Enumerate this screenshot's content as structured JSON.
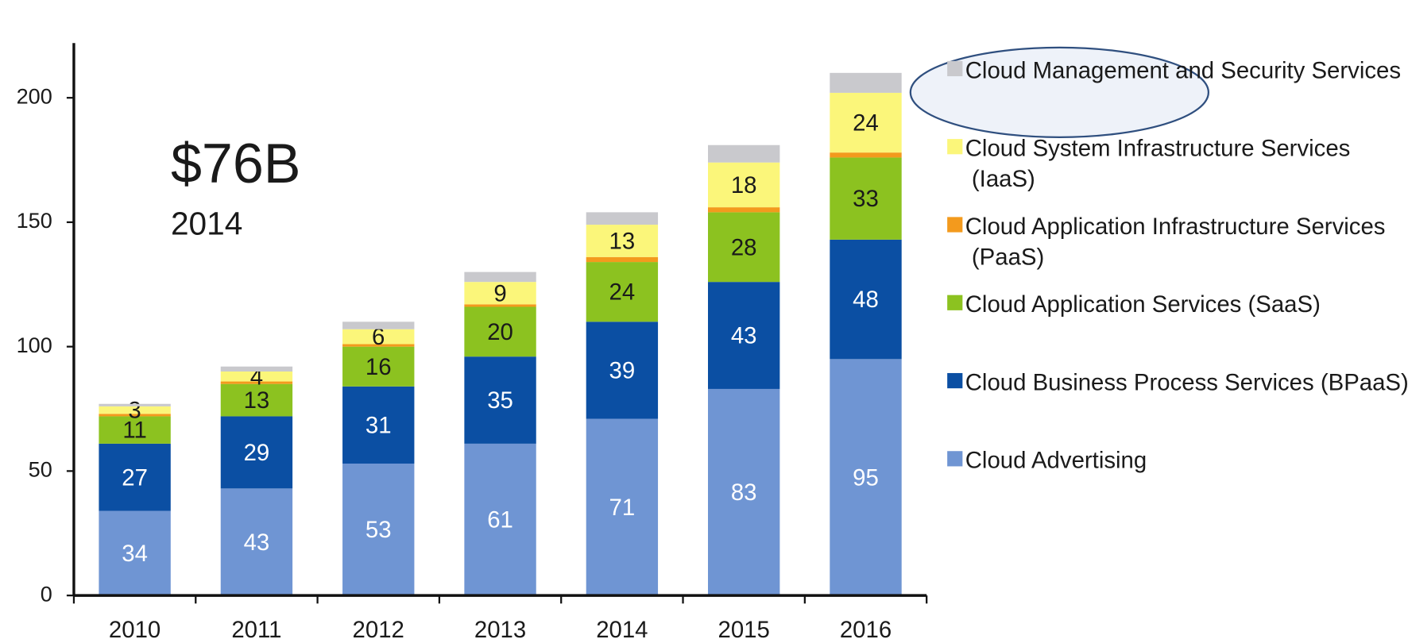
{
  "chart_data": {
    "type": "bar",
    "stacked": true,
    "categories": [
      "2010",
      "2011",
      "2012",
      "2013",
      "2014",
      "2015",
      "2016"
    ],
    "series": [
      {
        "name": "Cloud Advertising",
        "color": "#6f95d3",
        "label_color": "#ffffff",
        "data_labels": true,
        "values": [
          34,
          43,
          53,
          61,
          71,
          83,
          95
        ]
      },
      {
        "name": "Cloud Business Process Services (BPaaS)",
        "color": "#0b4fa3",
        "label_color": "#ffffff",
        "data_labels": true,
        "values": [
          27,
          29,
          31,
          35,
          39,
          43,
          48
        ]
      },
      {
        "name": "Cloud Application Services (SaaS)",
        "color": "#8cc220",
        "label_color": "#1a1a1a",
        "data_labels": true,
        "values": [
          11,
          13,
          16,
          20,
          24,
          28,
          33
        ]
      },
      {
        "name": "Cloud Application Infrastructure Services (PaaS)",
        "color": "#f39a1d",
        "label_color": "#1a1a1a",
        "data_labels": false,
        "values": [
          1,
          1,
          1,
          1,
          2,
          2,
          2
        ]
      },
      {
        "name": "Cloud System Infrastructure Services (IaaS)",
        "color": "#fbf67a",
        "label_color": "#1a1a1a",
        "data_labels": true,
        "values": [
          3,
          4,
          6,
          9,
          13,
          18,
          24
        ]
      },
      {
        "name": "Cloud Management and Security Services",
        "color": "#c9c9cd",
        "label_color": "#1a1a1a",
        "data_labels": false,
        "values": [
          1,
          2,
          3,
          4,
          5,
          7,
          8
        ]
      }
    ],
    "ylim": [
      0,
      222
    ],
    "yticks": [
      0,
      50,
      100,
      150,
      200
    ],
    "legend": "right",
    "annotations": [
      "$76B",
      "2014"
    ]
  }
}
